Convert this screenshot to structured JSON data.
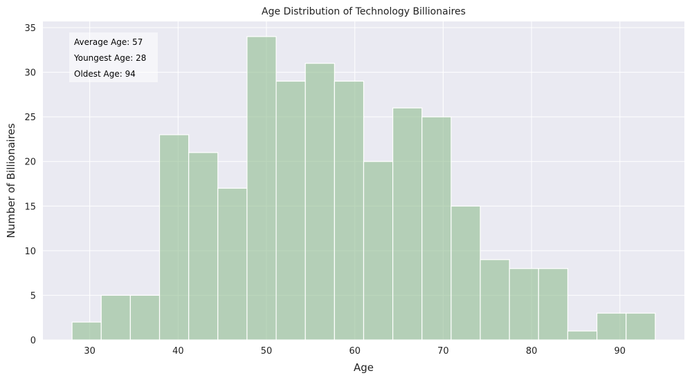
{
  "chart_data": {
    "type": "bar",
    "title": "Age Distribution of Technology Billionaires",
    "xlabel": "Age",
    "ylabel": "Number of Billionaires",
    "bin_edges": [
      28,
      31.3,
      34.6,
      37.9,
      41.2,
      44.5,
      47.8,
      51.1,
      54.4,
      57.7,
      61.0,
      64.3,
      67.6,
      70.9,
      74.2,
      77.5,
      80.8,
      84.1,
      87.4,
      90.7,
      94.0
    ],
    "values": [
      2,
      5,
      5,
      23,
      21,
      17,
      34,
      29,
      31,
      29,
      20,
      26,
      25,
      15,
      9,
      8,
      8,
      1,
      3,
      3
    ],
    "xlim": [
      24.7,
      97.3
    ],
    "ylim": [
      0,
      35.7
    ],
    "xticks": [
      30,
      40,
      50,
      60,
      70,
      80,
      90
    ],
    "yticks": [
      0,
      5,
      10,
      15,
      20,
      25,
      30,
      35
    ],
    "grid": true,
    "annotations": [
      "Average Age: 57",
      "Youngest Age: 28",
      "Oldest Age: 94"
    ],
    "colors": {
      "bar": "#8fbc8f",
      "bar_opacity": 0.6,
      "background": "#eaeaf2",
      "grid": "#ffffff"
    }
  }
}
